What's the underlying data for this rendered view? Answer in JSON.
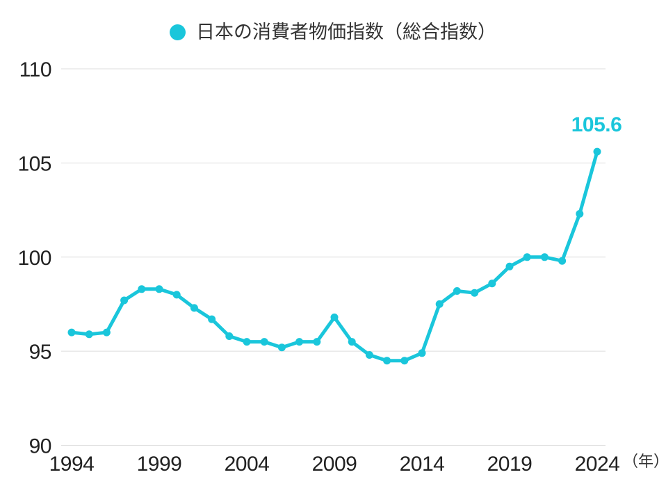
{
  "legend": {
    "label": "日本の消費者物価指数（総合指数）"
  },
  "annotation": {
    "last_value": "105.6"
  },
  "colors": {
    "line": "#1AC6DB",
    "grid": "#DDDDDD",
    "tick_text": "#222222",
    "unit_text": "#333333",
    "legend_text": "#333333",
    "background": "#FFFFFF"
  },
  "chart_data": {
    "type": "line",
    "title": "日本の消費者物価指数（総合指数）",
    "xlabel": "（年）",
    "ylabel": "",
    "x": [
      1994,
      1995,
      1996,
      1997,
      1998,
      1999,
      2000,
      2001,
      2002,
      2003,
      2004,
      2005,
      2006,
      2007,
      2008,
      2009,
      2010,
      2011,
      2012,
      2013,
      2014,
      2015,
      2016,
      2017,
      2018,
      2019,
      2020,
      2021,
      2022,
      2023,
      2024
    ],
    "values": [
      96.0,
      95.9,
      96.0,
      97.7,
      98.3,
      98.3,
      98.0,
      97.3,
      96.7,
      95.8,
      95.5,
      95.5,
      95.2,
      95.5,
      95.5,
      96.8,
      95.5,
      94.8,
      94.5,
      94.5,
      94.9,
      97.5,
      98.2,
      98.1,
      98.6,
      99.5,
      100.0,
      100.0,
      99.8,
      102.3,
      105.6
    ],
    "x_tick_years": [
      1994,
      1999,
      2004,
      2009,
      2014,
      2019,
      2024
    ],
    "y_ticks": [
      90,
      95,
      100,
      105,
      110
    ],
    "ylim": [
      90,
      110
    ],
    "grid": "horizontal",
    "legend_position": "top-center",
    "marker": "circle",
    "last_point_label": "105.6"
  }
}
